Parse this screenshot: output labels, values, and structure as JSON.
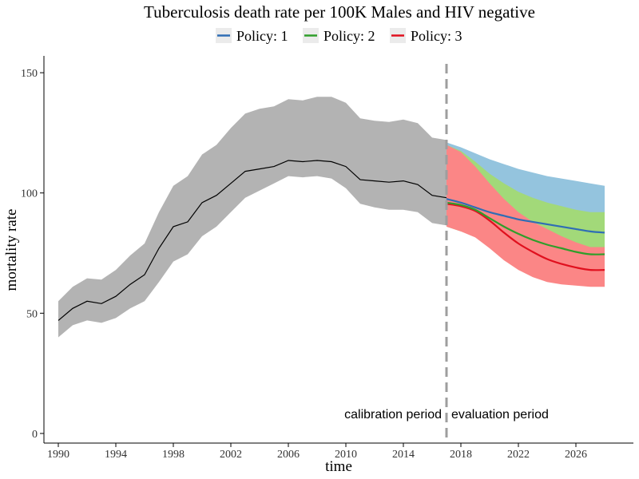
{
  "chart_data": {
    "type": "line",
    "title": "Tuberculosis death rate per 100K Males and HIV negative",
    "xlabel": "time",
    "ylabel": "mortality rate",
    "xlim": [
      1989,
      2030
    ],
    "ylim": [
      -4,
      157
    ],
    "x_ticks": [
      1990,
      1994,
      1998,
      2002,
      2006,
      2010,
      2014,
      2018,
      2022,
      2026
    ],
    "y_ticks": [
      0,
      50,
      100,
      150
    ],
    "grid": false,
    "legend_position": "top",
    "legend": [
      {
        "label": "Policy: 1",
        "color": "#2f6db5"
      },
      {
        "label": "Policy: 2",
        "color": "#2f9e2a"
      },
      {
        "label": "Policy: 3",
        "color": "#e0101e"
      }
    ],
    "calibration": {
      "x": [
        1990,
        1991,
        1992,
        1993,
        1994,
        1995,
        1996,
        1997,
        1998,
        1999,
        2000,
        2001,
        2002,
        2003,
        2004,
        2005,
        2006,
        2007,
        2008,
        2009,
        2010,
        2011,
        2012,
        2013,
        2014,
        2015,
        2016,
        2017
      ],
      "y": [
        47,
        52,
        55,
        54,
        57,
        62,
        66,
        77,
        86,
        88,
        96,
        99,
        104,
        109,
        110,
        111,
        113.5,
        113,
        113.5,
        113,
        111,
        105.5,
        105,
        104.5,
        105,
        103.5,
        99,
        98
      ],
      "lower": [
        40,
        45,
        47,
        46,
        48,
        52,
        55,
        63,
        71.5,
        74.5,
        82,
        86,
        92,
        98,
        101,
        104,
        107,
        106.5,
        107,
        106,
        102,
        95.5,
        94,
        93,
        93,
        92,
        87.5,
        86.5
      ],
      "upper": [
        55,
        61,
        64.5,
        64,
        68,
        74,
        79,
        92,
        103,
        107,
        116,
        120,
        127,
        133,
        135,
        136,
        139,
        138.5,
        140,
        140,
        137.5,
        131,
        130,
        129.5,
        130.5,
        129,
        123,
        122
      ],
      "band_color": "#b3b3b3",
      "line_color": "#000000"
    },
    "policies": [
      {
        "name": "Policy: 1",
        "color": "#2f6db5",
        "band_color": "#94c4de",
        "x": [
          2017,
          2018,
          2019,
          2020,
          2021,
          2022,
          2023,
          2024,
          2025,
          2026,
          2027,
          2028
        ],
        "y": [
          97.5,
          96,
          94,
          92,
          90.5,
          89,
          88,
          87,
          86,
          85,
          84,
          83.5
        ],
        "lower": [
          96,
          94,
          91.5,
          88.5,
          86,
          84.5,
          83.5,
          83,
          83,
          83,
          83,
          83
        ],
        "upper": [
          121,
          119,
          116.5,
          114,
          112,
          110,
          108.5,
          107,
          106,
          105,
          104,
          103
        ]
      },
      {
        "name": "Policy: 2",
        "color": "#2f9e2a",
        "band_color": "#a2d979",
        "x": [
          2017,
          2018,
          2019,
          2020,
          2021,
          2022,
          2023,
          2024,
          2025,
          2026,
          2027,
          2028
        ],
        "y": [
          96,
          95,
          93,
          89.5,
          86,
          83,
          80.5,
          78.5,
          77,
          75.5,
          74.5,
          74.5
        ],
        "lower": [
          86,
          84,
          82,
          78,
          73,
          69.5,
          68,
          68,
          68,
          68,
          68,
          68
        ],
        "upper": [
          120,
          117.5,
          113,
          108,
          104,
          100.5,
          98,
          96,
          94.5,
          93,
          92,
          92
        ]
      },
      {
        "name": "Policy: 3",
        "color": "#e0101e",
        "band_color": "#fb8686",
        "x": [
          2017,
          2018,
          2019,
          2020,
          2021,
          2022,
          2023,
          2024,
          2025,
          2026,
          2027,
          2028
        ],
        "y": [
          95.5,
          94.5,
          92.5,
          88.5,
          83.5,
          79,
          75.5,
          72.5,
          70.5,
          69,
          68,
          68
        ],
        "lower": [
          86,
          84,
          81.5,
          77,
          72,
          68,
          65,
          63,
          62,
          61.5,
          61,
          61
        ],
        "upper": [
          120,
          117,
          111,
          104,
          97.5,
          92,
          88,
          85,
          82,
          79.5,
          77.5,
          77.5
        ]
      }
    ],
    "divider": {
      "x": 2017,
      "color": "#9e9e9e"
    },
    "annotations": [
      {
        "text": "calibration period",
        "x": 2017,
        "y": 8,
        "anchor": "end"
      },
      {
        "text": "evaluation period",
        "x": 2017,
        "y": 8,
        "anchor": "start"
      }
    ]
  }
}
